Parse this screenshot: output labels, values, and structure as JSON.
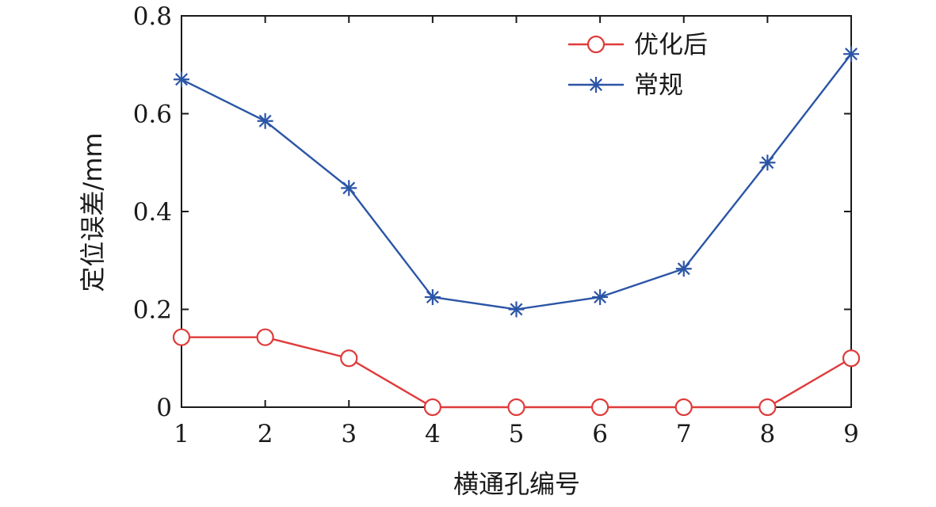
{
  "chart_data": {
    "type": "line",
    "x": [
      1,
      2,
      3,
      4,
      5,
      6,
      7,
      8,
      9
    ],
    "xlim": [
      1,
      9
    ],
    "ylim": [
      0,
      0.8
    ],
    "x_ticks": [
      "1",
      "2",
      "3",
      "4",
      "5",
      "6",
      "7",
      "8",
      "9"
    ],
    "y_ticks": [
      "0",
      "0.2",
      "0.4",
      "0.6",
      "0.8"
    ],
    "xlabel": "横通孔编号",
    "ylabel": "定位误差/mm",
    "grid": false,
    "legend_position": "top-right",
    "series": [
      {
        "name": "优化后",
        "marker": "circle",
        "color": "#e03a3a",
        "values": [
          0.143,
          0.143,
          0.1,
          0.0,
          0.0,
          0.0,
          0.0,
          0.0,
          0.1
        ]
      },
      {
        "name": "常规",
        "marker": "star",
        "color": "#2b55a6",
        "values": [
          0.67,
          0.585,
          0.448,
          0.225,
          0.2,
          0.225,
          0.283,
          0.5,
          0.722
        ]
      }
    ]
  }
}
